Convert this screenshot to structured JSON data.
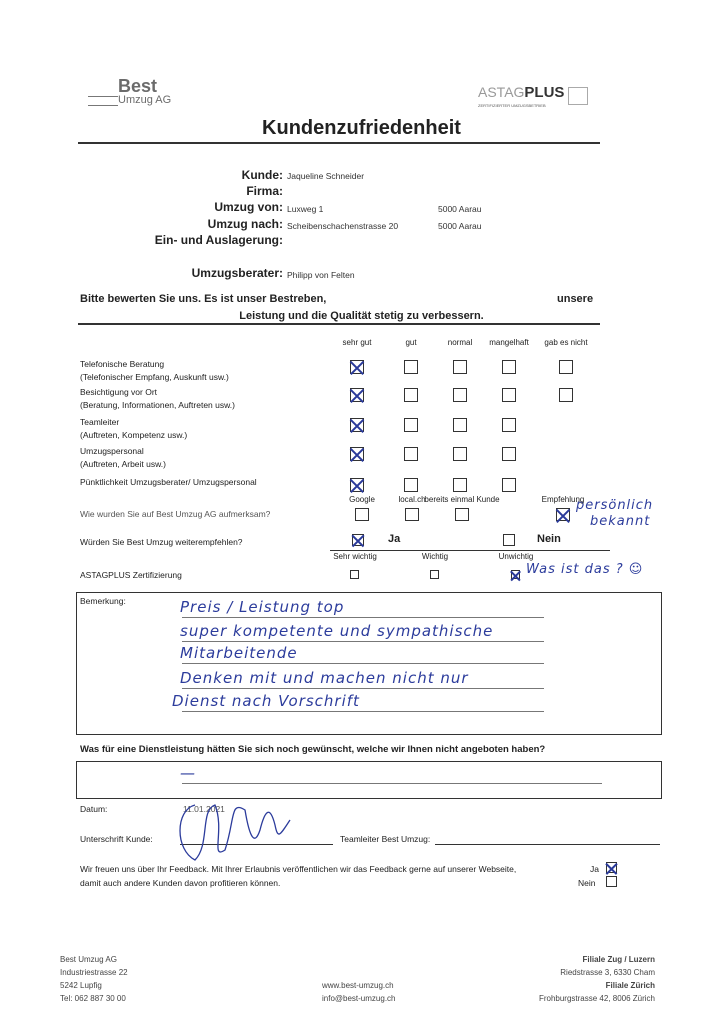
{
  "header": {
    "logo_best": "Best",
    "logo_umzug": "Umzug AG",
    "logo_astag": "ASTAG",
    "logo_plus": "PLUS",
    "logo_astag_sub": "ZERTIFIZIERTER UMZUGSBETRIEB",
    "title": "Kundenzufriedenheit"
  },
  "info": {
    "kunde_label": "Kunde:",
    "kunde": "Jaqueline  Schneider",
    "firma_label": "Firma:",
    "von_label": "Umzug von:",
    "von": "Luxweg 1",
    "von_ort": "5000 Aarau",
    "nach_label": "Umzug nach:",
    "nach": "Scheibenschachenstrasse 20",
    "nach_ort": "5000 Aarau",
    "lager_label": "Ein- und Auslagerung:",
    "berater_label": "Umzugsberater:",
    "berater": "Philipp von Felten"
  },
  "intro": {
    "line1": "Bitte bewerten Sie uns. Es ist unser Bestreben,",
    "line1_end": "unsere",
    "line2": "Leistung und die Qualität stetig zu verbessern."
  },
  "rating": {
    "columns": [
      "sehr gut",
      "gut",
      "normal",
      "mangelhaft",
      "gab es nicht"
    ],
    "rows": [
      {
        "title": "Telefonische Beratung",
        "sub": "(Telefonischer Empfang, Auskunft usw.)",
        "checked": 0,
        "boxes": 5
      },
      {
        "title": "Besichtigung vor Ort",
        "sub": "(Beratung, Informationen, Auftreten usw.)",
        "checked": 0,
        "boxes": 5
      },
      {
        "title": "Teamleiter",
        "sub": "(Auftreten, Kompetenz usw.)",
        "checked": 0,
        "boxes": 4
      },
      {
        "title": "Umzugspersonal",
        "sub": "(Auftreten, Arbeit usw.)",
        "checked": 0,
        "boxes": 4
      },
      {
        "title": "Pünktlichkeit Umzugsberater/ Umzugspersonal",
        "sub": "",
        "checked": 0,
        "boxes": 4
      }
    ]
  },
  "source": {
    "question": "Wie wurden Sie auf Best Umzug AG aufmerksam?",
    "options": [
      "Google",
      "local.ch",
      "bereits einmal Kunde",
      "Empfehlung"
    ],
    "checked": 3,
    "note1": "persönlich",
    "note2": "bekannt"
  },
  "recommend": {
    "question": "Würden Sie Best Umzug weiterempfehlen?",
    "yes": "Ja",
    "no": "Nein",
    "answer": "Ja"
  },
  "astag": {
    "label": "ASTAGPLUS Zertifizierung",
    "options": [
      "Sehr wichtig",
      "Wichtig",
      "Unwichtig"
    ],
    "checked": 2,
    "note": "Was ist das ? ☺"
  },
  "remarks": {
    "label": "Bemerkung:",
    "lines": [
      "Preis / Leistung top",
      "super kompetente und sympathische",
      "Mitarbeitende",
      "Denken mit und machen nicht nur",
      "Dienst nach Vorschrift"
    ]
  },
  "wish": {
    "question": "Was für eine Dienstleistung hätten Sie sich noch gewünscht, welche wir Ihnen nicht angeboten haben?",
    "answer": "—"
  },
  "sign": {
    "datum_label": "Datum:",
    "datum": "11.01.2021",
    "kunde_label": "Unterschrift Kunde:",
    "teamleiter_label": "Teamleiter Best Umzug:"
  },
  "consent": {
    "line1": "Wir freuen uns über Ihr Feedback. Mit Ihrer Erlaubnis veröffentlichen wir das Feedback gerne auf unserer Webseite,",
    "line2": "damit auch andere Kunden davon profitieren können.",
    "yes": "Ja",
    "no": "Nein",
    "answer": "Ja"
  },
  "footer": {
    "company": "Best Umzug AG",
    "street": "Industriestrasse 22",
    "city": "5242 Lupfig",
    "tel": "Tel: 062 887 30 00",
    "web": "www.best-umzug.ch",
    "email": "info@best-umzug.ch",
    "branch1": "Filiale Zug / Luzern",
    "branch1_addr": "Riedstrasse 3, 6330 Cham",
    "branch2": "Filiale Zürich",
    "branch2_addr": "Frohburgstrasse 42, 8006 Zürich"
  },
  "colors": {
    "ink": "#2c3c9c",
    "logo_gray": "#6b6b6b"
  }
}
